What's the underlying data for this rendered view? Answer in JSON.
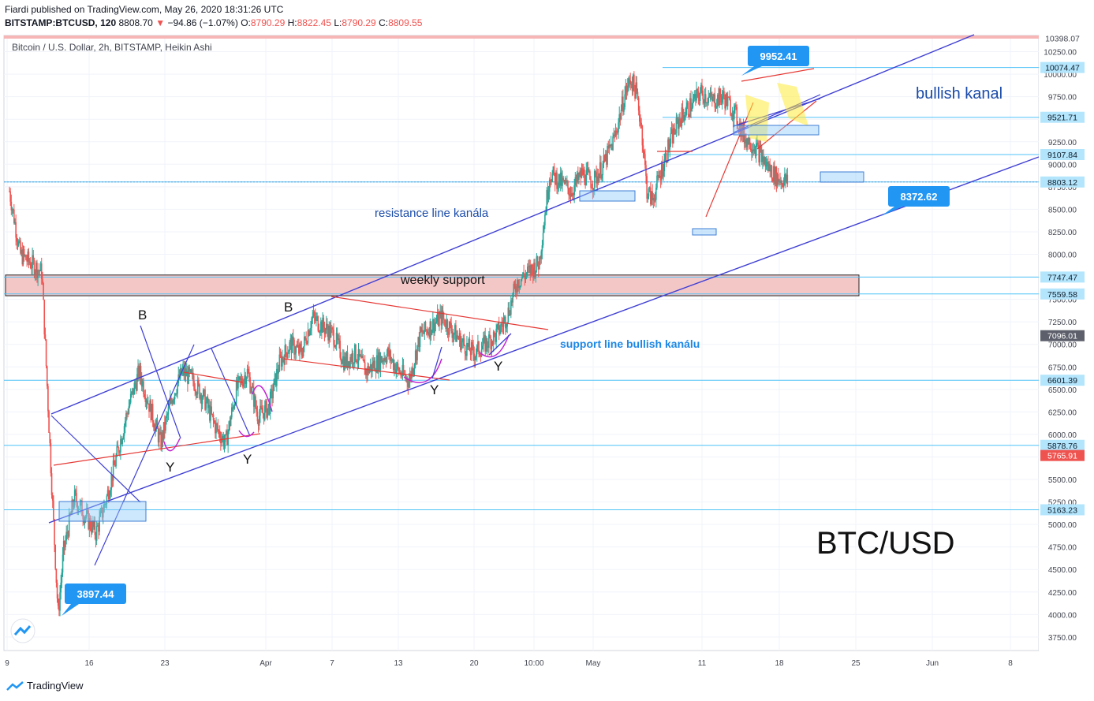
{
  "header": {
    "published": "Fiardi published on TradingView.com, May 26, 2020 18:31:26 UTC",
    "symbol": "BITSTAMP:BTCUSD, 120",
    "last": "8808.70",
    "arrow": "▼",
    "change": "−94.86 (−1.07%)",
    "o_label": "O:",
    "o": "8790.29",
    "h_label": "H:",
    "h": "8822.45",
    "l_label": "L:",
    "l": "8790.29",
    "c_label": "C:",
    "c": "8809.55"
  },
  "chart_title": "Bitcoin / U.S. Dollar, 2h, BITSTAMP, Heikin Ashi",
  "footer": {
    "brand": "TradingView"
  },
  "colors": {
    "up": "#26a69a",
    "down": "#ef5350",
    "channel": "#3f3fd4",
    "callout": "#2196f3",
    "hline": "#4fc3f7",
    "zone": "#f4c7c7",
    "box": "#90caf9"
  },
  "chart_data": {
    "type": "candlestick",
    "ylim": [
      3600,
      10430
    ],
    "y_ticks": [
      3750,
      4000,
      4250,
      4500,
      4750,
      5000,
      5250,
      5500,
      5750,
      6000,
      6250,
      6500,
      6750,
      7000,
      7250,
      7500,
      7750,
      8000,
      8250,
      8500,
      8750,
      9000,
      9250,
      9500,
      9750,
      10000,
      10250
    ],
    "x_ticks": [
      "9",
      "16",
      "23",
      "Apr",
      "7",
      "13",
      "20",
      "10:00",
      "May",
      "11",
      "18",
      "25",
      "Jun",
      "8"
    ],
    "price_labels": [
      {
        "value": 10398.07,
        "text": "10398.07",
        "style": "plain"
      },
      {
        "value": 10074.47,
        "text": "10074.47",
        "style": "line"
      },
      {
        "value": 9521.71,
        "text": "9521.71",
        "style": "line"
      },
      {
        "value": 9107.84,
        "text": "9107.84",
        "style": "line"
      },
      {
        "value": 8803.12,
        "text": "8803.12",
        "style": "line"
      },
      {
        "value": 7747.47,
        "text": "7747.47",
        "style": "line"
      },
      {
        "value": 7559.58,
        "text": "7559.58",
        "style": "line"
      },
      {
        "value": 7096.01,
        "text": "7096.01",
        "style": "dark"
      },
      {
        "value": 6601.39,
        "text": "6601.39",
        "style": "line"
      },
      {
        "value": 5878.76,
        "text": "5878.76",
        "style": "line"
      },
      {
        "value": 5765.91,
        "text": "5765.91",
        "style": "red"
      },
      {
        "value": 5163.23,
        "text": "5163.23",
        "style": "line"
      }
    ],
    "callouts": [
      {
        "text": "3897.44",
        "x_day": 12.5,
        "y": 3897.44
      },
      {
        "text": "9952.41",
        "x_day": 58.5,
        "y": 9952.41
      },
      {
        "text": "8372.62",
        "x_day": 78.5,
        "y": 8372.62
      }
    ],
    "annotations": [
      {
        "text": "bullish kanal",
        "style": "dark-blue-large"
      },
      {
        "text": "resistance line kanála",
        "style": "blue"
      },
      {
        "text": "weekly support",
        "style": "black"
      },
      {
        "text": "support line bullish kanálu",
        "style": "light-blue-bold"
      },
      {
        "text": "BTC/USD",
        "style": "huge"
      },
      {
        "text": "B",
        "style": "wave"
      },
      {
        "text": "B",
        "style": "wave"
      },
      {
        "text": "Y",
        "style": "wave"
      },
      {
        "text": "Y",
        "style": "wave"
      },
      {
        "text": "Y",
        "style": "wave"
      },
      {
        "text": "Y",
        "style": "wave"
      }
    ],
    "series_path": [
      [
        0,
        8700
      ],
      [
        1,
        8000
      ],
      [
        2,
        7900
      ],
      [
        3,
        7800
      ],
      [
        3.5,
        6500
      ],
      [
        4,
        5200
      ],
      [
        4.5,
        4000
      ],
      [
        5,
        4700
      ],
      [
        6,
        5300
      ],
      [
        7,
        5100
      ],
      [
        8,
        4900
      ],
      [
        9,
        5300
      ],
      [
        10,
        5800
      ],
      [
        11,
        6300
      ],
      [
        12,
        6700
      ],
      [
        13,
        6300
      ],
      [
        14,
        5900
      ],
      [
        15,
        6400
      ],
      [
        16,
        6700
      ],
      [
        17,
        6600
      ],
      [
        18,
        6400
      ],
      [
        19,
        6100
      ],
      [
        20,
        5900
      ],
      [
        21,
        6500
      ],
      [
        22,
        6700
      ],
      [
        23,
        6200
      ],
      [
        24,
        6300
      ],
      [
        25,
        6800
      ],
      [
        26,
        7000
      ],
      [
        27,
        6900
      ],
      [
        28,
        7300
      ],
      [
        29,
        7200
      ],
      [
        30,
        7100
      ],
      [
        31,
        6800
      ],
      [
        32,
        6900
      ],
      [
        33,
        6700
      ],
      [
        34,
        6800
      ],
      [
        35,
        6900
      ],
      [
        36,
        6700
      ],
      [
        37,
        6600
      ],
      [
        38,
        7100
      ],
      [
        39,
        7200
      ],
      [
        40,
        7300
      ],
      [
        41,
        7150
      ],
      [
        42,
        7000
      ],
      [
        43,
        6900
      ],
      [
        44,
        7000
      ],
      [
        45,
        7100
      ],
      [
        46,
        7300
      ],
      [
        47,
        7700
      ],
      [
        48,
        7800
      ],
      [
        49,
        7900
      ],
      [
        50,
        8900
      ],
      [
        51,
        8800
      ],
      [
        52,
        8700
      ],
      [
        53,
        8900
      ],
      [
        54,
        8800
      ],
      [
        55,
        9000
      ],
      [
        56,
        9300
      ],
      [
        57,
        9800
      ],
      [
        57.5,
        9950
      ],
      [
        58,
        9800
      ],
      [
        58.5,
        9400
      ],
      [
        59,
        8700
      ],
      [
        59.5,
        8600
      ],
      [
        60,
        8800
      ],
      [
        61,
        9200
      ],
      [
        62,
        9500
      ],
      [
        63,
        9650
      ],
      [
        64,
        9800
      ],
      [
        65,
        9700
      ],
      [
        66,
        9750
      ],
      [
        67,
        9600
      ],
      [
        68,
        9300
      ],
      [
        69,
        9200
      ],
      [
        70,
        9000
      ],
      [
        71,
        8850
      ],
      [
        72,
        8800
      ]
    ]
  }
}
